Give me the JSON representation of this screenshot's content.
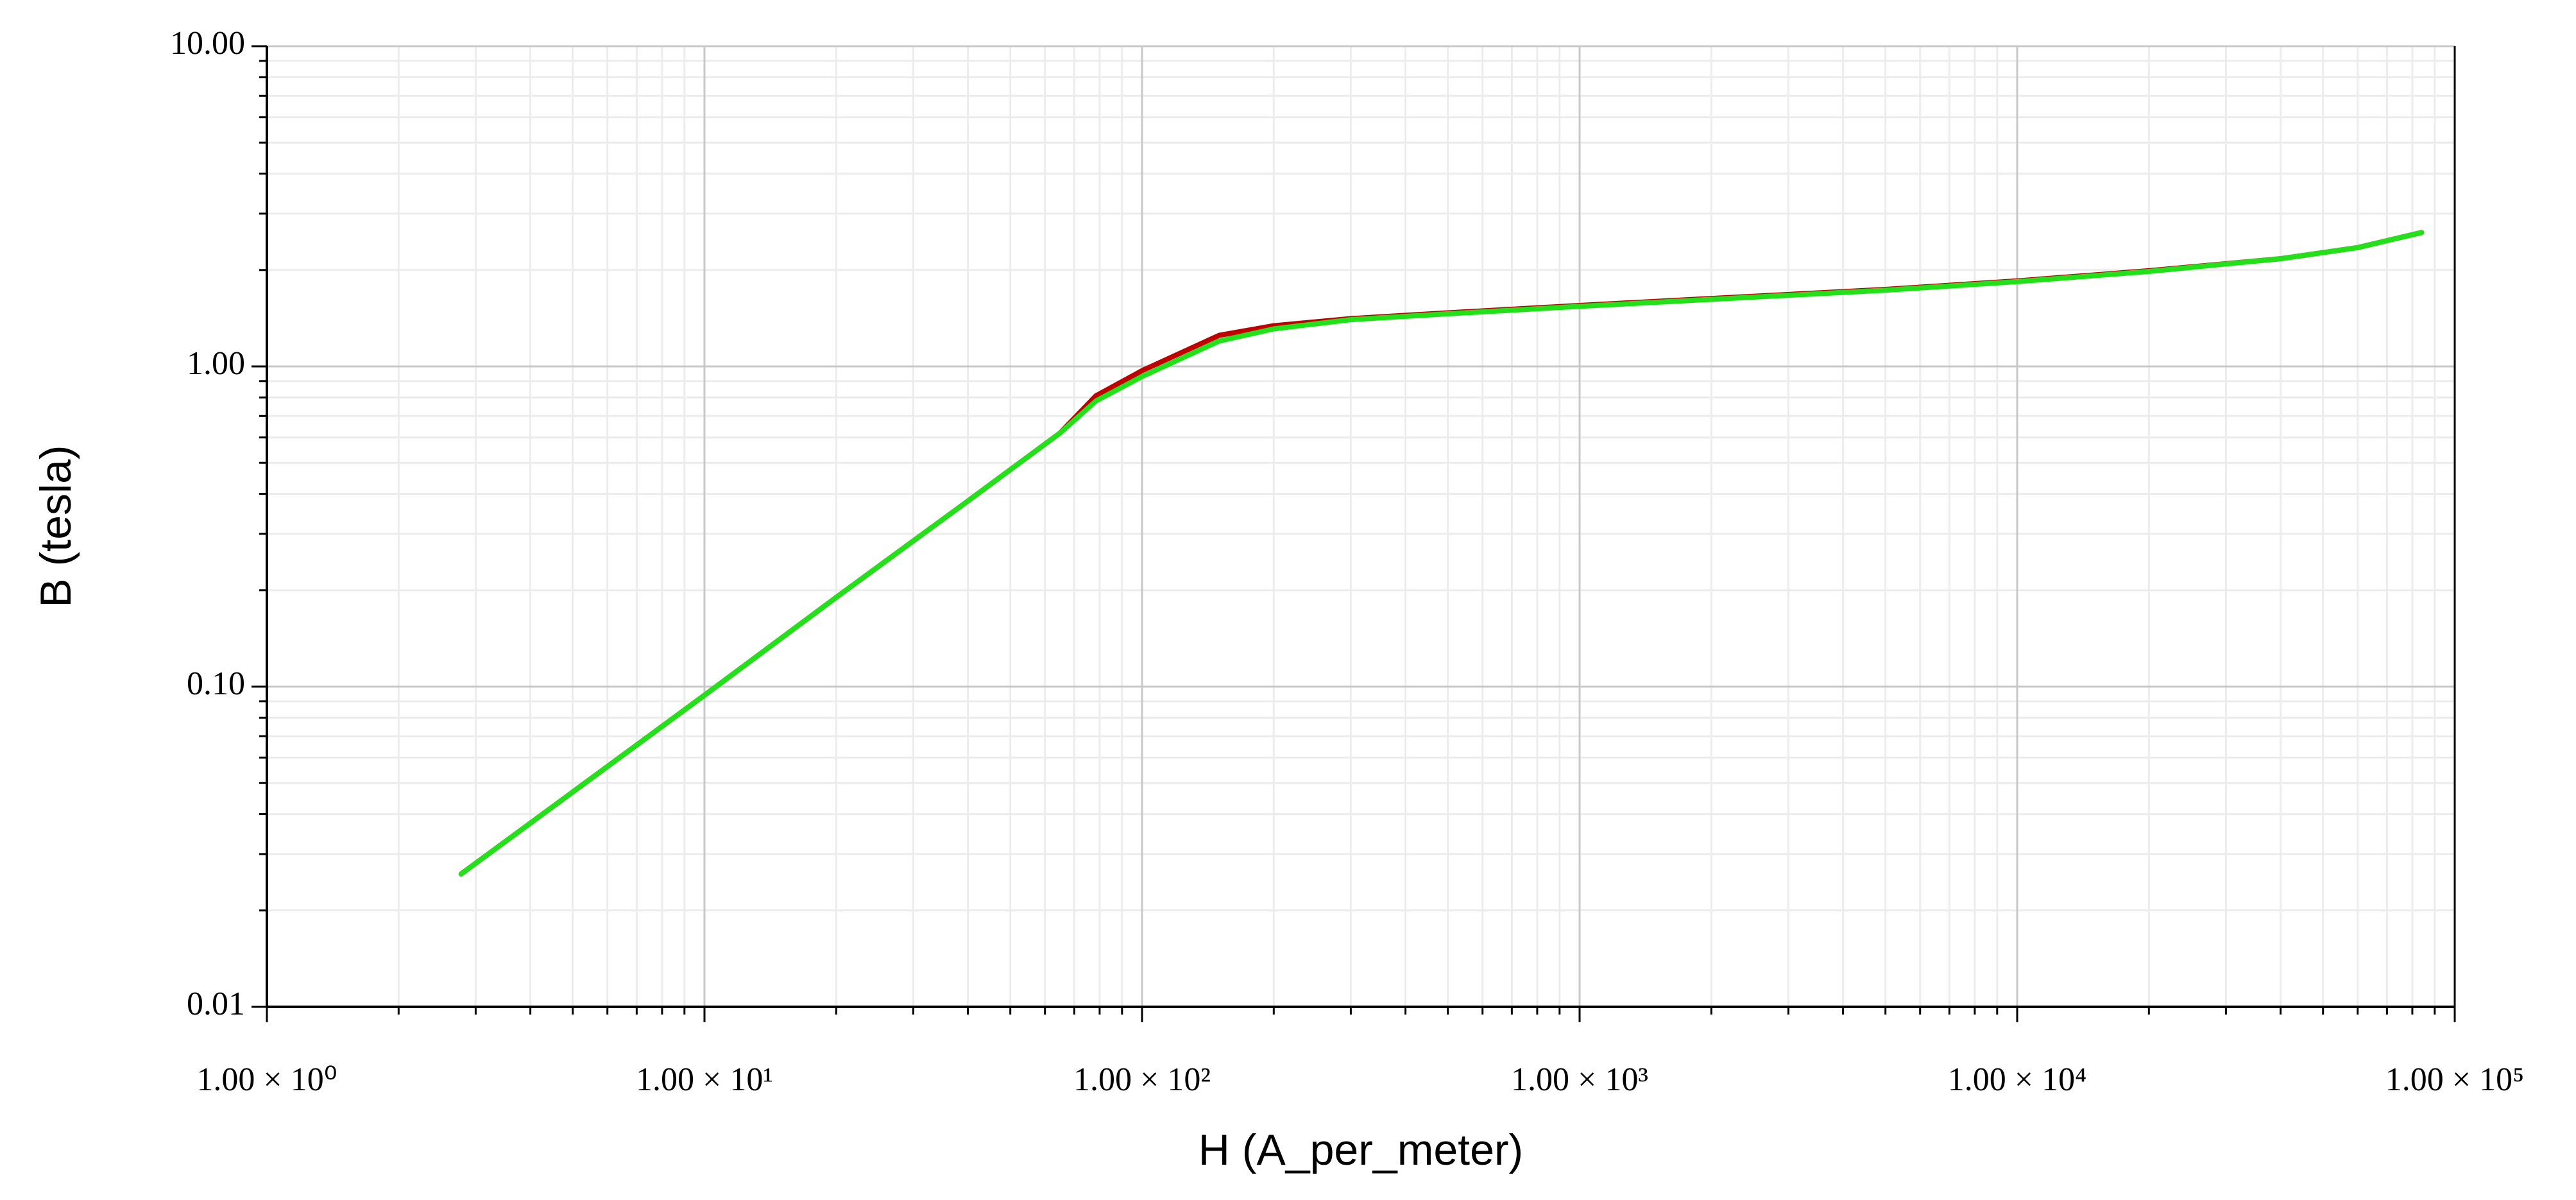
{
  "chart_data": {
    "type": "line",
    "x_label": "H (A_per_meter)",
    "y_label": "B (tesla)",
    "log_x": true,
    "log_y": true,
    "grid": true,
    "minor_grid": true,
    "xlim": [
      1,
      100000
    ],
    "ylim": [
      0.01,
      10
    ],
    "xticks": [
      {
        "value": 1,
        "label": "1.00 × 10⁰"
      },
      {
        "value": 10,
        "label": "1.00 × 10¹"
      },
      {
        "value": 100,
        "label": "1.00 × 10²"
      },
      {
        "value": 1000,
        "label": "1.00 × 10³"
      },
      {
        "value": 10000,
        "label": "1.00 × 10⁴"
      },
      {
        "value": 100000,
        "label": "1.00 × 10⁵"
      }
    ],
    "yticks": [
      {
        "value": 0.01,
        "label": "0.01"
      },
      {
        "value": 0.1,
        "label": "0.10"
      },
      {
        "value": 1,
        "label": "1.00"
      },
      {
        "value": 10,
        "label": "10.00"
      }
    ],
    "x": [
      2.78,
      10,
      20,
      40,
      65,
      78.5,
      100,
      150,
      200,
      300,
      500,
      1000,
      2000,
      5000,
      10000,
      20000,
      40000,
      60000,
      84000
    ],
    "series": [
      {
        "color": "#c00000",
        "values": [
          0.026,
          0.094,
          0.19,
          0.38,
          0.62,
          0.81,
          0.97,
          1.25,
          1.34,
          1.41,
          1.47,
          1.55,
          1.63,
          1.74,
          1.85,
          1.99,
          2.17,
          2.35,
          2.62
        ]
      },
      {
        "color": "#22e01a",
        "values": [
          0.026,
          0.094,
          0.19,
          0.38,
          0.62,
          0.78,
          0.93,
          1.2,
          1.31,
          1.4,
          1.46,
          1.54,
          1.62,
          1.73,
          1.84,
          1.98,
          2.17,
          2.35,
          2.62
        ]
      }
    ]
  }
}
